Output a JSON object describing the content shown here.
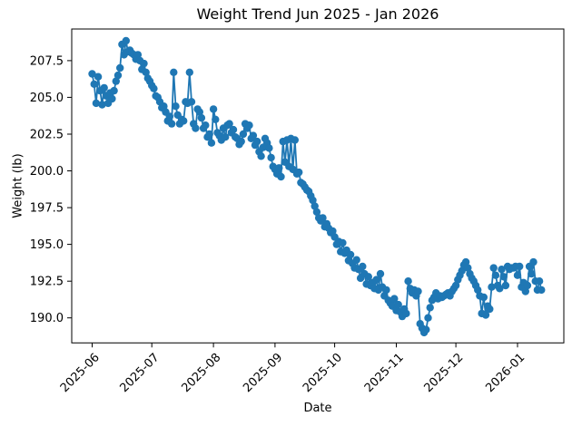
{
  "chart_data": {
    "type": "line",
    "title": "Weight Trend Jun 2025 - Jan 2026",
    "xlabel": "Date",
    "ylabel": "Weight (lb)",
    "legend": null,
    "grid": false,
    "marker": "circle",
    "series_color": "#1f77b4",
    "start_date": "2025-06-01",
    "end_date": "2026-01-13",
    "x_ticks": [
      {
        "day_offset": 0,
        "label": "2025-06"
      },
      {
        "day_offset": 30,
        "label": "2025-07"
      },
      {
        "day_offset": 61,
        "label": "2025-08"
      },
      {
        "day_offset": 92,
        "label": "2025-09"
      },
      {
        "day_offset": 122,
        "label": "2025-10"
      },
      {
        "day_offset": 153,
        "label": "2025-11"
      },
      {
        "day_offset": 183,
        "label": "2025-12"
      },
      {
        "day_offset": 214,
        "label": "2026-01"
      }
    ],
    "y_ticks": [
      "190.0",
      "192.5",
      "195.0",
      "197.5",
      "200.0",
      "202.5",
      "205.0",
      "207.5"
    ],
    "xlim_days": [
      -10.3,
      237.3
    ],
    "ylim": [
      188.3,
      209.65
    ],
    "values": [
      206.6,
      205.9,
      204.6,
      206.4,
      205.45,
      204.5,
      205.65,
      205.1,
      204.6,
      205.3,
      204.9,
      205.45,
      206.1,
      206.5,
      207.0,
      208.6,
      207.9,
      208.85,
      208.1,
      208.2,
      208.0,
      207.9,
      207.6,
      207.9,
      207.5,
      206.9,
      207.3,
      206.7,
      206.3,
      206.1,
      205.8,
      205.6,
      205.1,
      205.0,
      204.7,
      204.3,
      204.4,
      204.0,
      203.4,
      203.7,
      203.2,
      206.7,
      204.4,
      203.8,
      203.2,
      203.5,
      203.4,
      204.7,
      204.6,
      206.7,
      204.7,
      203.2,
      202.9,
      204.2,
      204.0,
      203.6,
      202.9,
      203.1,
      202.3,
      202.5,
      201.9,
      204.2,
      203.5,
      202.6,
      202.4,
      202.1,
      202.9,
      202.3,
      203.1,
      203.2,
      202.6,
      202.8,
      202.3,
      202.2,
      201.8,
      202.0,
      202.5,
      203.2,
      202.9,
      203.1,
      202.2,
      202.4,
      201.75,
      202.0,
      201.3,
      201.0,
      201.6,
      202.2,
      201.9,
      201.55,
      200.9,
      200.3,
      200.1,
      199.8,
      200.2,
      199.6,
      202.0,
      200.6,
      202.1,
      200.3,
      202.2,
      200.1,
      202.1,
      199.8,
      199.9,
      199.2,
      199.1,
      198.9,
      198.7,
      198.6,
      198.3,
      198.0,
      197.6,
      197.2,
      196.8,
      196.6,
      196.8,
      196.2,
      196.4,
      196.1,
      195.8,
      195.9,
      195.5,
      195.0,
      195.2,
      194.5,
      195.1,
      194.4,
      194.6,
      193.9,
      194.3,
      193.7,
      193.4,
      193.95,
      193.3,
      192.7,
      193.5,
      193.0,
      192.3,
      192.8,
      192.2,
      192.4,
      192.0,
      192.6,
      191.9,
      193.0,
      192.1,
      191.5,
      191.9,
      191.2,
      191.0,
      190.8,
      191.3,
      190.5,
      190.9,
      190.4,
      190.1,
      190.6,
      190.3,
      192.5,
      192.0,
      191.7,
      191.9,
      191.5,
      191.8,
      189.6,
      189.3,
      189.0,
      189.2,
      190.0,
      190.7,
      191.2,
      191.4,
      191.7,
      191.3,
      191.5,
      191.4,
      191.5,
      191.6,
      191.7,
      191.5,
      191.8,
      192.0,
      192.2,
      192.6,
      192.9,
      193.2,
      193.6,
      193.8,
      193.4,
      193.0,
      192.7,
      192.5,
      192.2,
      191.9,
      191.5,
      190.3,
      191.4,
      190.2,
      190.8,
      190.6,
      192.1,
      193.4,
      192.9,
      192.2,
      192.0,
      193.3,
      192.8,
      192.2,
      193.5,
      193.3,
      193.4,
      193.4,
      193.5,
      192.9,
      193.5,
      192.1,
      192.4,
      191.8,
      192.2,
      193.5,
      193.0,
      193.8,
      192.5,
      191.9,
      192.5,
      191.9
    ]
  }
}
